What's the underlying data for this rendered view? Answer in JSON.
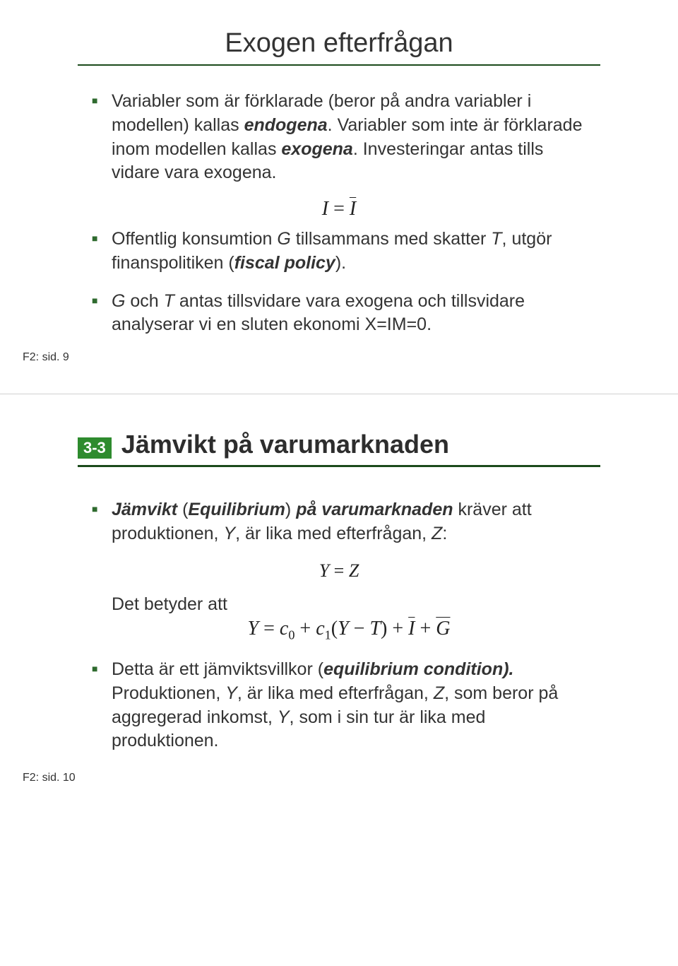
{
  "slide1": {
    "title": "Exogen efterfrågan",
    "bullet1_a": "Variabler som är förklarade (beror på andra variabler i modellen) kallas ",
    "bullet1_b": "endogena",
    "bullet1_c": ". Variabler som inte är förklarade inom modellen kallas ",
    "bullet1_d": "exogena",
    "bullet1_e": ". Investeringar antas tills vidare vara exogena.",
    "eq1_lhs": "I",
    "eq1_eq": " = ",
    "eq1_rhs": "I",
    "bullet2_a": "Offentlig konsumtion ",
    "bullet2_G": "G",
    "bullet2_b": " tillsammans med skatter ",
    "bullet2_T": "T",
    "bullet2_c": ", utgör finanspolitiken (",
    "bullet2_d": "fiscal policy",
    "bullet2_e": ").",
    "bullet3_G": "G",
    "bullet3_a": " och ",
    "bullet3_T": "T",
    "bullet3_b": " antas tillsvidare vara exogena och tillsvidare analyserar vi en sluten ekonomi X=IM=0.",
    "footer": "F2: sid. 9"
  },
  "slide2": {
    "badge": "3-3",
    "title": "Jämvikt på varumarknaden",
    "bullet1_a": "Jämvikt",
    "bullet1_b": " (",
    "bullet1_c": "Equilibrium",
    "bullet1_d": ") ",
    "bullet1_e": "på varumarknaden",
    "bullet1_f": " kräver att produktionen, ",
    "bullet1_Y": "Y",
    "bullet1_g": ", är lika med efterfrågan, ",
    "bullet1_Z": "Z",
    "bullet1_h": ":",
    "eq1_Y": "Y",
    "eq1_eq": " = ",
    "eq1_Z": "Z",
    "det_label": "Det betyder att",
    "eq2_Y": "Y",
    "eq2_eq1": " = ",
    "eq2_c": "c",
    "eq2_0": "0",
    "eq2_plus1": " + ",
    "eq2_1": "1",
    "eq2_lpar": "(",
    "eq2_minus": " − ",
    "eq2_T": "T",
    "eq2_rpar": ")",
    "eq2_plus2": " + ",
    "eq2_I": "I",
    "eq2_plus3": " + ",
    "eq2_G": "G",
    "bullet2_a": "Detta är ett jämviktsvillkor (",
    "bullet2_b": "equilibrium condition).",
    "bullet2_c": " Produktionen, ",
    "bullet2_Y": "Y",
    "bullet2_d": ", är lika med efterfrågan, ",
    "bullet2_Z": "Z",
    "bullet2_e": ", som beror på aggregerad inkomst, ",
    "bullet2_Y2": "Y",
    "bullet2_f": ", som i sin tur är lika med produktionen.",
    "footer": "F2: sid. 10"
  },
  "colors": {
    "accent_green": "#2e6a2e",
    "badge_green": "#2e8b2e",
    "rule_dark": "#1b4a1b",
    "text": "#333333",
    "bg": "#ffffff"
  }
}
